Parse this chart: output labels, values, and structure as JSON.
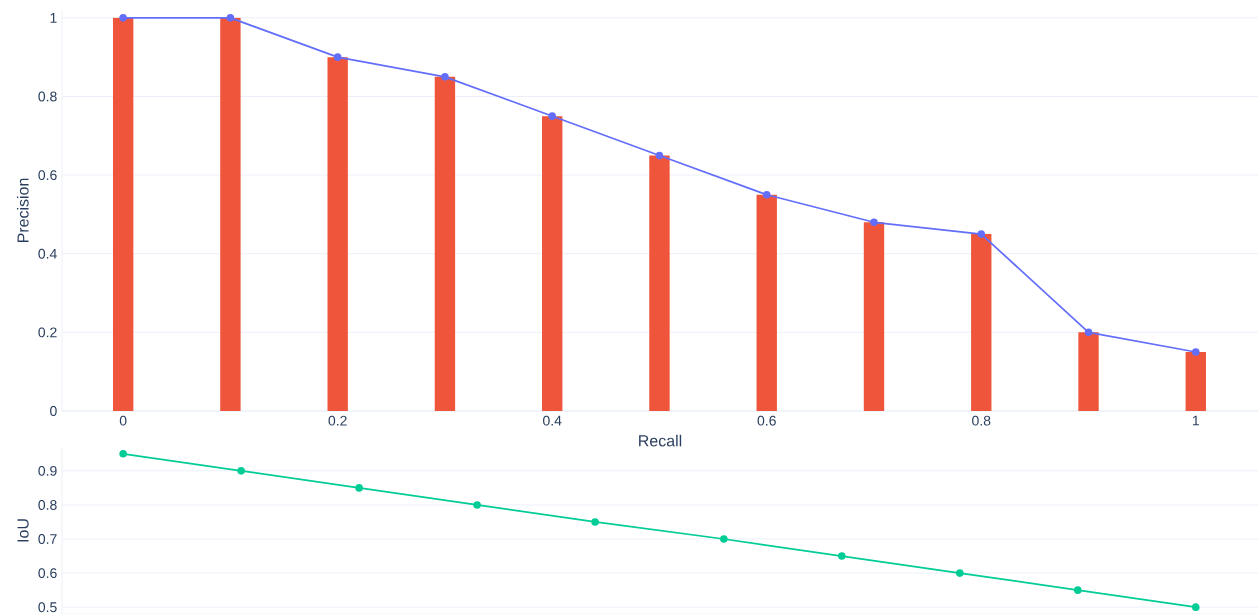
{
  "chart_data": [
    {
      "type": "bar",
      "xlabel": "Recall",
      "ylabel": "Precision",
      "x": [
        0,
        0.1,
        0.2,
        0.3,
        0.4,
        0.5,
        0.6,
        0.7,
        0.8,
        0.9,
        1
      ],
      "series": [
        {
          "type": "bar",
          "color": "#ef553b",
          "values": [
            1,
            1,
            0.9,
            0.85,
            0.75,
            0.65,
            0.55,
            0.48,
            0.45,
            0.2,
            0.15
          ]
        },
        {
          "type": "line",
          "color": "#636efa",
          "marker": "circle",
          "values": [
            1,
            1,
            0.9,
            0.85,
            0.75,
            0.65,
            0.55,
            0.48,
            0.45,
            0.2,
            0.15
          ]
        }
      ],
      "xlim": [
        -0.057,
        1.058
      ],
      "xticks": [
        0,
        0.2,
        0.4,
        0.6,
        0.8,
        1
      ],
      "ylim": [
        0,
        1.02
      ],
      "yticks": [
        0,
        0.2,
        0.4,
        0.6,
        0.8,
        1
      ],
      "grid": "y"
    },
    {
      "type": "line",
      "ylabel": "IoU",
      "x": [
        0,
        0.11,
        0.22,
        0.33,
        0.44,
        0.56,
        0.67,
        0.78,
        0.89,
        1
      ],
      "series": [
        {
          "color": "#00cc96",
          "values": [
            0.95,
            0.9,
            0.85,
            0.8,
            0.75,
            0.7,
            0.65,
            0.6,
            0.55,
            0.5
          ]
        }
      ],
      "marker": "circle",
      "xlim": [
        -0.057,
        1.058
      ],
      "ylim": [
        0.48,
        0.97
      ],
      "yticks": [
        0.5,
        0.6,
        0.7,
        0.8,
        0.9
      ],
      "grid": "y",
      "tick_labels": "y"
    }
  ]
}
